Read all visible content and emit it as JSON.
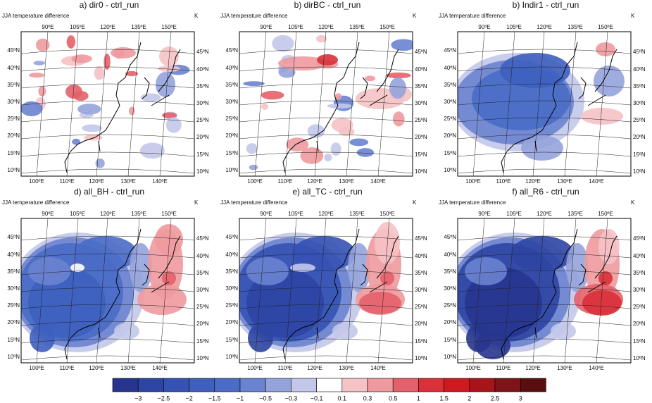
{
  "panels": [
    {
      "title": "a) dir0 - ctrl_run",
      "subtitle": "JJA temperature difference",
      "unit": "K"
    },
    {
      "title": "b) dirBC - ctrl_run",
      "subtitle": "JJA temperature difference",
      "unit": "K"
    },
    {
      "title": "b) Indir1 - ctrl_run",
      "subtitle": "JJA temperature difference",
      "unit": "K"
    },
    {
      "title": "d) all_BH - ctrl_run",
      "subtitle": "JJA temperature difference",
      "unit": "K"
    },
    {
      "title": "e) all_TC - ctrl_run",
      "subtitle": "JJA temperature difference",
      "unit": "K"
    },
    {
      "title": "f) all_R6 - ctrl_run",
      "subtitle": "JJA temperature difference",
      "unit": "K"
    }
  ],
  "lat_labels": [
    "45ºN",
    "40ºN",
    "35ºN",
    "30ºN",
    "25ºN",
    "20ºN",
    "15ºN",
    "10ºN"
  ],
  "top_lon_labels": [
    "90ºE",
    "105ºE",
    "120ºE",
    "135ºE",
    "150ºE"
  ],
  "bottom_lon_labels": [
    "100ºE",
    "110ºE",
    "120ºE",
    "130ºE",
    "140ºE"
  ],
  "colorbar": {
    "labels": [
      "−3",
      "−2.5",
      "−2",
      "−1.5",
      "−1",
      "−0.5",
      "−0.3",
      "−0.1",
      "0.1",
      "0.3",
      "0.5",
      "1",
      "1.5",
      "2",
      "2.5",
      "3"
    ],
    "colors": [
      "#27358f",
      "#2d45a3",
      "#3552b4",
      "#3e5fbe",
      "#4a6cc6",
      "#6a83d0",
      "#95a3dc",
      "#c3c8ea",
      "#ffffff",
      "#f5c2c5",
      "#ee9a9f",
      "#e4606a",
      "#d93039",
      "#cc1a1f",
      "#a8141a",
      "#7f1418",
      "#5a0e10"
    ]
  }
}
